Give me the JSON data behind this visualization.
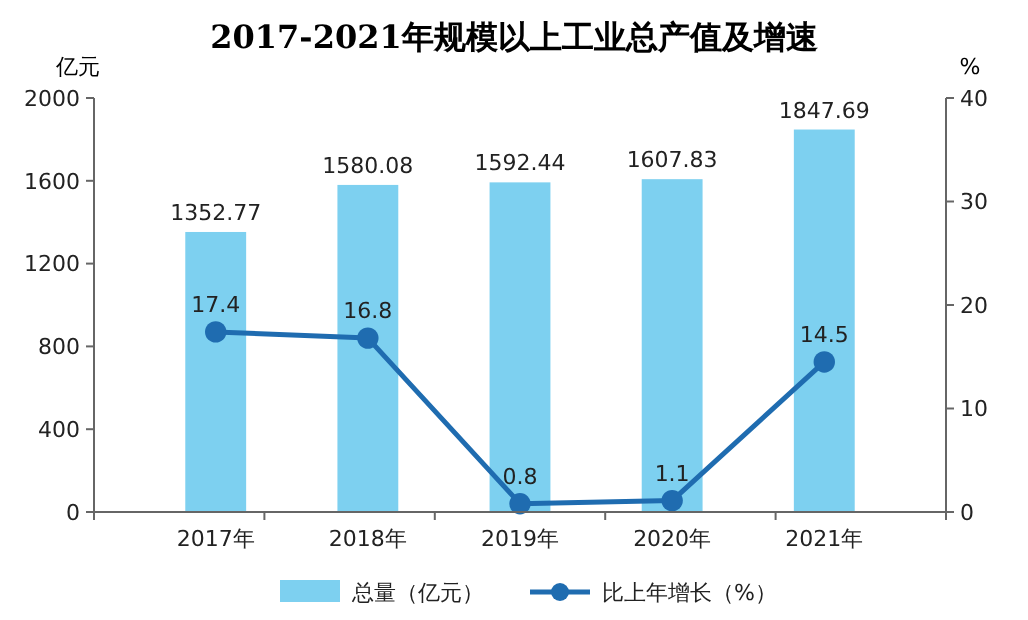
{
  "chart_data": {
    "type": "bar",
    "title": "2017-2021年规模以上工业总产值及增速",
    "ylabel": "亿元",
    "y2label": "%",
    "categories": [
      "2017年",
      "2018年",
      "2019年",
      "2020年",
      "2021年"
    ],
    "series": [
      {
        "name": "总量（亿元）",
        "type": "bar",
        "color": "#7dd0f0",
        "values": [
          1352.77,
          1580.08,
          1592.44,
          1607.83,
          1847.69
        ]
      },
      {
        "name": "比上年增长（%）",
        "type": "line",
        "axis": "y2",
        "color": "#1f6cb0",
        "values": [
          17.4,
          16.8,
          0.8,
          1.1,
          14.5
        ]
      }
    ],
    "ylim": [
      0,
      2000
    ],
    "yticks": [
      0,
      400,
      800,
      1200,
      1600,
      2000
    ],
    "y2lim": [
      0,
      40
    ],
    "y2ticks": [
      0,
      10,
      20,
      30,
      40
    ],
    "data_labels": true,
    "legend": "bottom",
    "marker": "circle",
    "grid": false
  }
}
